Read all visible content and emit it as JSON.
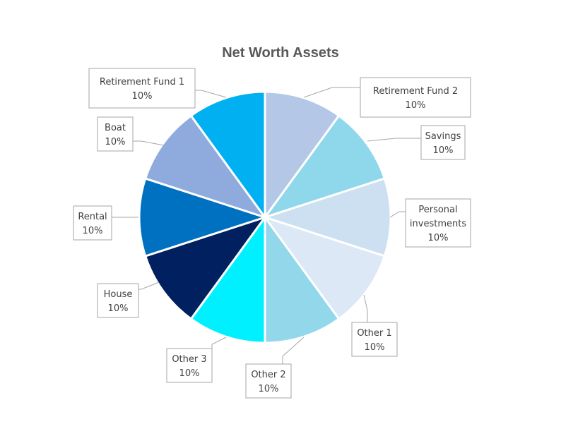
{
  "chart_data": {
    "type": "pie",
    "title": "Net Worth Assets",
    "start_angle_deg": 0,
    "direction": "clockwise",
    "slices": [
      {
        "name": "Retirement Fund 2",
        "value": 10,
        "label": "10%",
        "color": "#B4C7E7"
      },
      {
        "name": "Savings",
        "value": 10,
        "label": "10%",
        "color": "#8FD8EC"
      },
      {
        "name": "Personal investments",
        "label_lines": [
          "Personal",
          "investments"
        ],
        "value": 10,
        "label": "10%",
        "color": "#CCE0F2"
      },
      {
        "name": "Other 1",
        "value": 10,
        "label": "10%",
        "color": "#DCE8F6"
      },
      {
        "name": "Other 2",
        "value": 10,
        "label": "10%",
        "color": "#92D8EA"
      },
      {
        "name": "Other 3",
        "value": 10,
        "label": "10%",
        "color": "#00F0FF"
      },
      {
        "name": "House",
        "value": 10,
        "label": "10%",
        "color": "#002060"
      },
      {
        "name": "Rental",
        "value": 10,
        "label": "10%",
        "color": "#0070C0"
      },
      {
        "name": "Boat",
        "value": 10,
        "label": "10%",
        "color": "#8FAADC"
      },
      {
        "name": "Retirement Fund 1",
        "value": 10,
        "label": "10%",
        "color": "#00B0F0"
      }
    ]
  }
}
